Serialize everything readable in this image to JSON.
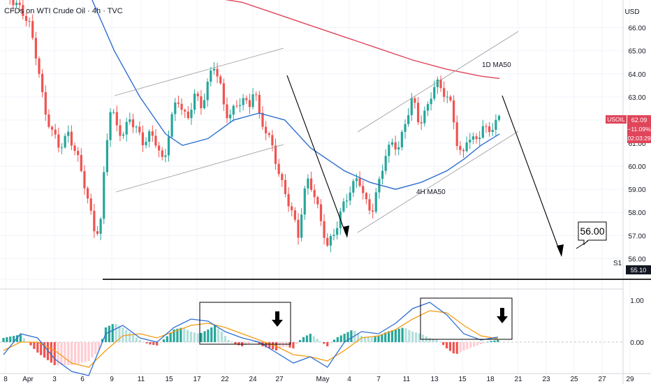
{
  "header": {
    "title": "CFDs on WTI Crude Oil · 4h · TVC",
    "currency": "USD"
  },
  "chart_data": [
    {
      "type": "candlestick",
      "title": "CFDs on WTI Crude Oil · 4h · TVC",
      "x_tick_labels": [
        "8",
        "Apr",
        "3",
        "6",
        "9",
        "11",
        "15",
        "17",
        "22",
        "24",
        "27",
        "May",
        "4",
        "7",
        "11",
        "13",
        "15",
        "18",
        "21",
        "23",
        "25",
        "27",
        "29"
      ],
      "y_tick_labels": [
        "55.10",
        "56.00",
        "57.00",
        "58.00",
        "59.00",
        "60.00",
        "61.00",
        "62.00",
        "63.00",
        "64.00",
        "65.00",
        "66.00"
      ],
      "ylim": [
        54.8,
        67.2
      ],
      "price_path": [
        [
          0,
          67.6
        ],
        [
          0.5,
          67.2
        ],
        [
          1,
          66.8
        ],
        [
          1.5,
          66.2
        ],
        [
          2,
          64.5
        ],
        [
          2.4,
          62.4
        ],
        [
          2.8,
          61.6
        ],
        [
          3.3,
          60.8
        ],
        [
          3.8,
          61.4
        ],
        [
          4.3,
          60.5
        ],
        [
          4.7,
          59.4
        ],
        [
          5.1,
          58.0
        ],
        [
          5.4,
          57.0
        ],
        [
          5.7,
          57.6
        ],
        [
          6.0,
          60.8
        ],
        [
          6.3,
          62.6
        ],
        [
          6.6,
          61.8
        ],
        [
          7.0,
          61.3
        ],
        [
          7.4,
          62.1
        ],
        [
          7.8,
          61.6
        ],
        [
          8.2,
          61.0
        ],
        [
          8.6,
          61.4
        ],
        [
          9.0,
          61.0
        ],
        [
          9.4,
          60.0
        ],
        [
          9.8,
          62.0
        ],
        [
          10.2,
          62.9
        ],
        [
          10.5,
          62.5
        ],
        [
          10.8,
          61.9
        ],
        [
          11.2,
          63.2
        ],
        [
          11.6,
          62.5
        ],
        [
          12.0,
          63.7
        ],
        [
          12.4,
          64.4
        ],
        [
          12.7,
          63.6
        ],
        [
          13.0,
          62.2
        ],
        [
          13.3,
          62.3
        ],
        [
          13.7,
          62.6
        ],
        [
          14.0,
          63.0
        ],
        [
          14.4,
          62.5
        ],
        [
          14.7,
          63.5
        ],
        [
          15.0,
          62.2
        ],
        [
          15.4,
          61.5
        ],
        [
          15.8,
          60.8
        ],
        [
          16.2,
          59.5
        ],
        [
          16.6,
          58.7
        ],
        [
          17.0,
          57.8
        ],
        [
          17.3,
          57.0
        ],
        [
          17.6,
          58.7
        ],
        [
          17.9,
          59.5
        ],
        [
          18.2,
          58.8
        ],
        [
          18.6,
          57.7
        ],
        [
          19.0,
          56.5
        ],
        [
          19.3,
          57.0
        ],
        [
          19.6,
          57.5
        ],
        [
          20.0,
          58.5
        ],
        [
          20.4,
          59.0
        ],
        [
          20.8,
          59.6
        ],
        [
          21.2,
          58.5
        ],
        [
          21.6,
          58.0
        ],
        [
          22.0,
          59.2
        ],
        [
          22.4,
          60.5
        ],
        [
          22.8,
          61.0
        ],
        [
          23.2,
          60.8
        ],
        [
          23.6,
          62.0
        ],
        [
          24.0,
          63.0
        ],
        [
          24.4,
          61.8
        ],
        [
          24.8,
          62.4
        ],
        [
          25.2,
          63.4
        ],
        [
          25.5,
          63.6
        ],
        [
          25.9,
          63.1
        ],
        [
          26.3,
          62.6
        ],
        [
          26.6,
          61.0
        ],
        [
          26.9,
          60.3
        ],
        [
          27.2,
          61.3
        ],
        [
          27.5,
          61.1
        ],
        [
          27.8,
          61.2
        ],
        [
          28.1,
          61.7
        ],
        [
          28.4,
          61.5
        ],
        [
          28.8,
          61.8
        ],
        [
          29.1,
          62.1
        ]
      ],
      "ma_lines": [
        {
          "name": "1D MA50",
          "color": "#e0455a",
          "points": [
            [
              11.5,
              67.4
            ],
            [
              14,
              67.1
            ],
            [
              16,
              66.6
            ],
            [
              18,
              66.1
            ],
            [
              20,
              65.6
            ],
            [
              22,
              65.1
            ],
            [
              24,
              64.6
            ],
            [
              26,
              64.2
            ],
            [
              28,
              63.9
            ],
            [
              29.1,
              63.8
            ]
          ]
        },
        {
          "name": "4H MA50",
          "color": "#2f6fd0",
          "points": [
            [
              5.2,
              67.2
            ],
            [
              6.5,
              65.0
            ],
            [
              8,
              63.0
            ],
            [
              9.5,
              61.4
            ],
            [
              10.5,
              60.9
            ],
            [
              12,
              61.2
            ],
            [
              13.5,
              62.0
            ],
            [
              15,
              62.3
            ],
            [
              16.5,
              62.0
            ],
            [
              18,
              60.8
            ],
            [
              20,
              59.8
            ],
            [
              21.5,
              59.3
            ],
            [
              23,
              59.0
            ],
            [
              24.5,
              59.3
            ],
            [
              26,
              59.8
            ],
            [
              27,
              60.3
            ],
            [
              28,
              60.9
            ],
            [
              29.1,
              61.4
            ]
          ]
        }
      ],
      "annotations": [
        "1D MA50",
        "4H MA50",
        "56.00",
        "S1"
      ],
      "price_badges": [
        {
          "symbol": "USOIL",
          "price": "62.09",
          "change": "−11.09%",
          "countdown": "02:03:29",
          "color": "#e0455a"
        },
        {
          "price": "55.10",
          "color": "#131722"
        }
      ],
      "support_level": {
        "label": "S1",
        "value": 55.1
      },
      "target": {
        "label": "56.00",
        "value": 56.0
      }
    },
    {
      "type": "macd",
      "y_tick_labels": [
        "1.00",
        "0.00"
      ],
      "ylim": [
        -0.75,
        1.2
      ],
      "histogram": [
        [
          0,
          0.1
        ],
        [
          1,
          0.18
        ],
        [
          2,
          -0.25
        ],
        [
          3,
          -0.55
        ],
        [
          4,
          -0.55
        ],
        [
          5,
          -0.45
        ],
        [
          5.6,
          -0.2
        ],
        [
          6,
          0.35
        ],
        [
          6.5,
          0.45
        ],
        [
          7,
          0.35
        ],
        [
          7.5,
          0.2
        ],
        [
          8,
          0.05
        ],
        [
          8.5,
          -0.05
        ],
        [
          9,
          -0.08
        ],
        [
          9.5,
          0.1
        ],
        [
          10,
          0.3
        ],
        [
          10.5,
          0.35
        ],
        [
          11,
          0.25
        ],
        [
          11.5,
          0.2
        ],
        [
          12,
          0.3
        ],
        [
          12.4,
          0.4
        ],
        [
          12.8,
          0.25
        ],
        [
          13.2,
          0.05
        ],
        [
          13.6,
          -0.05
        ],
        [
          14,
          -0.1
        ],
        [
          14.4,
          -0.05
        ],
        [
          14.8,
          0.02
        ],
        [
          15.2,
          -0.1
        ],
        [
          15.6,
          -0.15
        ],
        [
          16,
          -0.2
        ],
        [
          16.5,
          -0.1
        ],
        [
          17,
          -0.15
        ],
        [
          17.5,
          0.1
        ],
        [
          18,
          0.2
        ],
        [
          18.5,
          0.05
        ],
        [
          19,
          -0.1
        ],
        [
          19.5,
          0.1
        ],
        [
          20,
          0.2
        ],
        [
          20.5,
          0.3
        ],
        [
          21,
          0.15
        ],
        [
          21.5,
          0.1
        ],
        [
          22,
          0.15
        ],
        [
          22.5,
          0.25
        ],
        [
          23,
          0.3
        ],
        [
          23.5,
          0.35
        ],
        [
          24,
          0.25
        ],
        [
          24.5,
          0.2
        ],
        [
          25,
          0.1
        ],
        [
          25.5,
          0.05
        ],
        [
          26,
          -0.15
        ],
        [
          26.5,
          -0.3
        ],
        [
          27,
          -0.2
        ],
        [
          27.5,
          -0.12
        ],
        [
          28,
          -0.05
        ],
        [
          28.5,
          0.02
        ],
        [
          29,
          0.05
        ]
      ],
      "macd_line": [
        [
          0,
          -0.3
        ],
        [
          1,
          0.2
        ],
        [
          2,
          0.1
        ],
        [
          3,
          -0.4
        ],
        [
          4,
          -0.7
        ],
        [
          5,
          -0.8
        ],
        [
          6,
          0.2
        ],
        [
          7,
          0.4
        ],
        [
          8,
          0.1
        ],
        [
          9,
          0.0
        ],
        [
          10,
          0.35
        ],
        [
          11,
          0.55
        ],
        [
          12,
          0.5
        ],
        [
          13,
          0.25
        ],
        [
          14,
          0.1
        ],
        [
          15,
          0.0
        ],
        [
          16,
          -0.25
        ],
        [
          17,
          -0.5
        ],
        [
          18,
          -0.35
        ],
        [
          19,
          -0.6
        ],
        [
          20,
          0.0
        ],
        [
          21,
          0.25
        ],
        [
          22,
          0.2
        ],
        [
          23,
          0.45
        ],
        [
          24,
          0.8
        ],
        [
          25,
          0.95
        ],
        [
          26,
          0.65
        ],
        [
          27,
          0.2
        ],
        [
          28,
          0.05
        ],
        [
          29,
          0.12
        ]
      ],
      "signal_line": [
        [
          0,
          -0.2
        ],
        [
          1,
          0.0
        ],
        [
          2,
          0.0
        ],
        [
          3,
          -0.2
        ],
        [
          4,
          -0.5
        ],
        [
          5,
          -0.6
        ],
        [
          6,
          -0.2
        ],
        [
          7,
          0.15
        ],
        [
          8,
          0.2
        ],
        [
          9,
          0.1
        ],
        [
          10,
          0.25
        ],
        [
          11,
          0.4
        ],
        [
          12,
          0.45
        ],
        [
          13,
          0.35
        ],
        [
          14,
          0.2
        ],
        [
          15,
          0.05
        ],
        [
          16,
          -0.1
        ],
        [
          17,
          -0.3
        ],
        [
          18,
          -0.35
        ],
        [
          19,
          -0.45
        ],
        [
          20,
          -0.2
        ],
        [
          21,
          0.1
        ],
        [
          22,
          0.15
        ],
        [
          23,
          0.3
        ],
        [
          24,
          0.55
        ],
        [
          25,
          0.75
        ],
        [
          26,
          0.7
        ],
        [
          27,
          0.4
        ],
        [
          28,
          0.15
        ],
        [
          29,
          0.08
        ]
      ]
    }
  ],
  "colors": {
    "bull": "#26a69a",
    "bear": "#ef5350",
    "histUp": "#26a69a",
    "histDown": "#ef5350",
    "macd": "#2f6fd0",
    "signal": "#f39c12",
    "axisText": "#131722"
  }
}
